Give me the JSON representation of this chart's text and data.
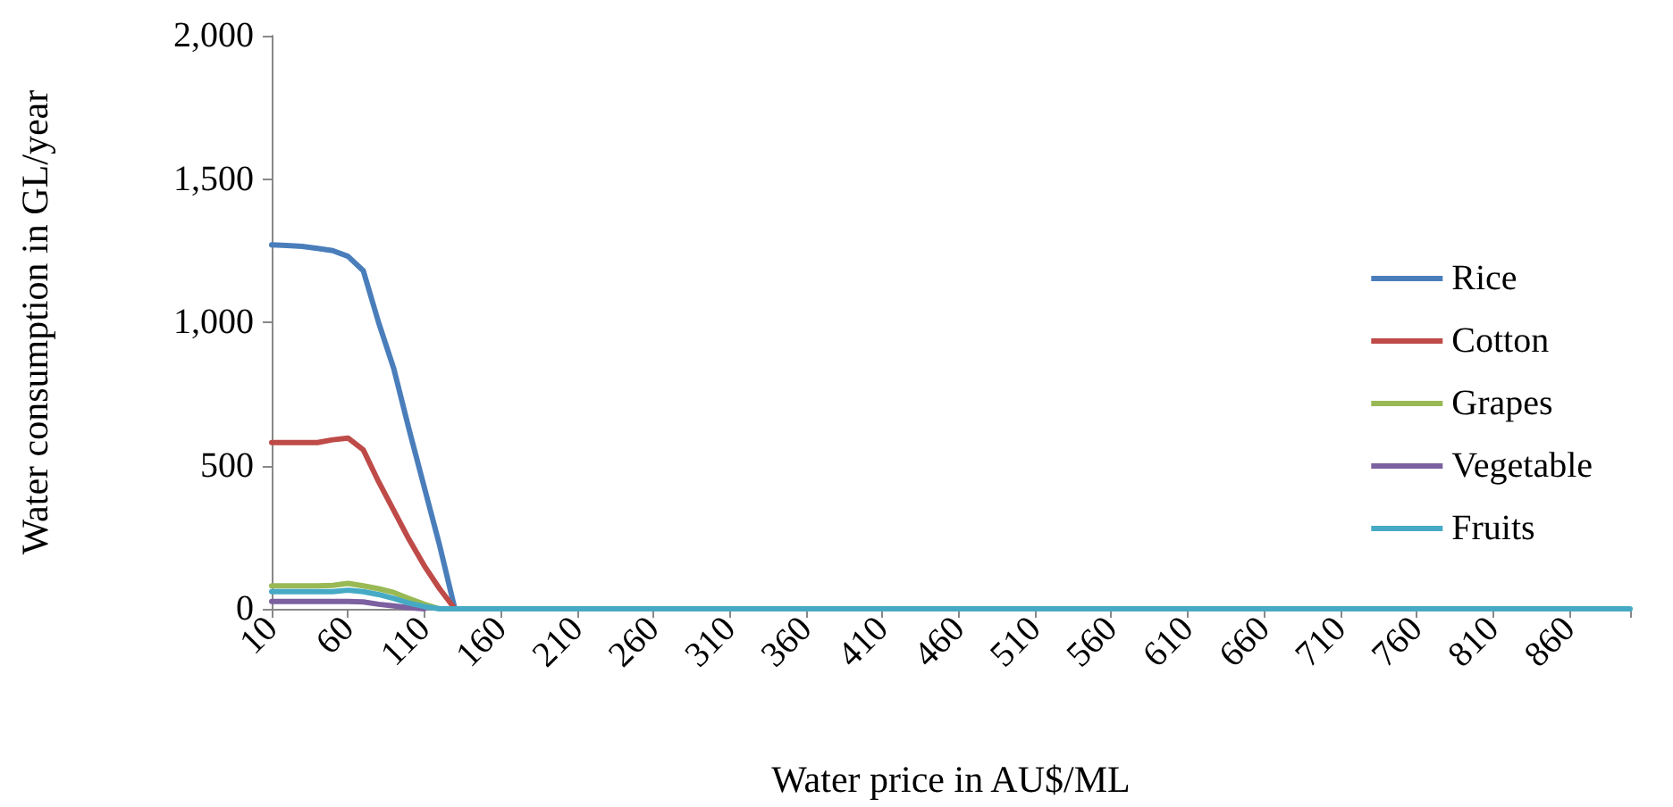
{
  "chart_data": {
    "type": "line",
    "xlabel": "Water price in AU$/ML",
    "ylabel": "Water consumption in GL/year",
    "categories": [
      "10",
      null,
      null,
      null,
      null,
      "60",
      null,
      null,
      null,
      null,
      "110",
      null,
      null,
      null,
      null,
      "160",
      null,
      null,
      null,
      null,
      "210",
      null,
      null,
      null,
      null,
      "260",
      null,
      null,
      null,
      null,
      "310",
      null,
      null,
      null,
      null,
      "360",
      null,
      null,
      null,
      null,
      "410",
      null,
      null,
      null,
      null,
      "460",
      null,
      null,
      null,
      null,
      "510",
      null,
      null,
      null,
      null,
      "560",
      null,
      null,
      null,
      null,
      "610",
      null,
      null,
      null,
      null,
      "660",
      null,
      null,
      null,
      null,
      "710",
      null,
      null,
      null,
      null,
      "760",
      null,
      null,
      null,
      null,
      "810",
      null,
      null,
      null,
      null,
      "860",
      null,
      null,
      null,
      null
    ],
    "series": [
      {
        "name": "Rice",
        "color": "#4a7ebb",
        "values": [
          1270,
          1268,
          1265,
          1258,
          1250,
          1230,
          1180,
          1000,
          838,
          626,
          424,
          222,
          0,
          null,
          null,
          null,
          null,
          null,
          null,
          null,
          null,
          null,
          null,
          null,
          null,
          null,
          null,
          null,
          null,
          null,
          null,
          null,
          null,
          null,
          null,
          null,
          null,
          null,
          null,
          null,
          null,
          null,
          null,
          null,
          null,
          null,
          null,
          null,
          null,
          null,
          null,
          null,
          null,
          null,
          null,
          null,
          null,
          null,
          null,
          null,
          null,
          null,
          null,
          null,
          null,
          null,
          null,
          null,
          null,
          null,
          null,
          null,
          null,
          null,
          null,
          null,
          null,
          null,
          null,
          null,
          null,
          null,
          null,
          null,
          null,
          null,
          null,
          null,
          null,
          null
        ]
      },
      {
        "name": "Cotton",
        "color": "#be4b48",
        "values": [
          580,
          580,
          580,
          580,
          590,
          596,
          555,
          444,
          343,
          242,
          150,
          70,
          0,
          null,
          null,
          null,
          null,
          null,
          null,
          null,
          null,
          null,
          null,
          null,
          null,
          null,
          null,
          null,
          null,
          null,
          null,
          null,
          null,
          null,
          null,
          null,
          null,
          null,
          null,
          null,
          null,
          null,
          null,
          null,
          null,
          null,
          null,
          null,
          null,
          null,
          null,
          null,
          null,
          null,
          null,
          null,
          null,
          null,
          null,
          null,
          null,
          null,
          null,
          null,
          null,
          null,
          null,
          null,
          null,
          null,
          null,
          null,
          null,
          null,
          null,
          null,
          null,
          null,
          null,
          null,
          null,
          null,
          null,
          null,
          null,
          null,
          null,
          null,
          null,
          null
        ]
      },
      {
        "name": "Grapes",
        "color": "#98b954",
        "values": [
          80,
          80,
          80,
          80,
          82,
          89,
          80,
          70,
          57,
          36,
          16,
          0,
          null,
          null,
          null,
          null,
          null,
          null,
          null,
          null,
          null,
          null,
          null,
          null,
          null,
          null,
          null,
          null,
          null,
          null,
          null,
          null,
          null,
          null,
          null,
          null,
          null,
          null,
          null,
          null,
          null,
          null,
          null,
          null,
          null,
          null,
          null,
          null,
          null,
          null,
          null,
          null,
          null,
          null,
          null,
          null,
          null,
          null,
          null,
          null,
          null,
          null,
          null,
          null,
          null,
          null,
          null,
          null,
          null,
          null,
          null,
          null,
          null,
          null,
          null,
          null,
          null,
          null,
          null,
          null,
          null,
          null,
          null,
          null,
          null,
          null,
          null,
          null,
          null,
          null
        ]
      },
      {
        "name": "Vegetable",
        "color": "#7d60a0",
        "values": [
          26,
          26,
          26,
          26,
          26,
          26,
          24,
          16,
          10,
          4,
          0,
          null,
          null,
          null,
          null,
          null,
          null,
          null,
          null,
          null,
          null,
          null,
          null,
          null,
          null,
          null,
          null,
          null,
          null,
          null,
          null,
          null,
          null,
          null,
          null,
          null,
          null,
          null,
          null,
          null,
          null,
          null,
          null,
          null,
          null,
          null,
          null,
          null,
          null,
          null,
          null,
          null,
          null,
          null,
          null,
          null,
          null,
          null,
          null,
          null,
          null,
          null,
          null,
          null,
          null,
          null,
          null,
          null,
          null,
          null,
          null,
          null,
          null,
          null,
          null,
          null,
          null,
          null,
          null,
          null,
          null,
          null,
          null,
          null,
          null,
          null,
          null,
          null,
          null,
          null
        ]
      },
      {
        "name": "Fruits",
        "color": "#46aac5",
        "values": [
          60,
          60,
          60,
          60,
          60,
          65,
          60,
          50,
          36,
          20,
          8,
          0,
          0,
          0,
          0,
          0,
          0,
          0,
          0,
          0,
          0,
          0,
          0,
          0,
          0,
          0,
          0,
          0,
          0,
          0,
          0,
          0,
          0,
          0,
          0,
          0,
          0,
          0,
          0,
          0,
          0,
          0,
          0,
          0,
          0,
          0,
          0,
          0,
          0,
          0,
          0,
          0,
          0,
          0,
          0,
          0,
          0,
          0,
          0,
          0,
          0,
          0,
          0,
          0,
          0,
          0,
          0,
          0,
          0,
          0,
          0,
          0,
          0,
          0,
          0,
          0,
          0,
          0,
          0,
          0,
          0,
          0,
          0,
          0,
          0,
          0,
          0,
          0,
          0,
          0
        ]
      }
    ],
    "ylim": [
      0,
      2000
    ],
    "yticks": [
      0,
      {
        "value": 500,
        "label": "500"
      },
      {
        "value": 1000,
        "label": "1,000"
      },
      {
        "value": 1500,
        "label": "1,500"
      },
      {
        "value": 2000,
        "label": "2,000"
      }
    ],
    "grid": false,
    "legend": "right",
    "marker": "none",
    "line_style": "solid"
  }
}
